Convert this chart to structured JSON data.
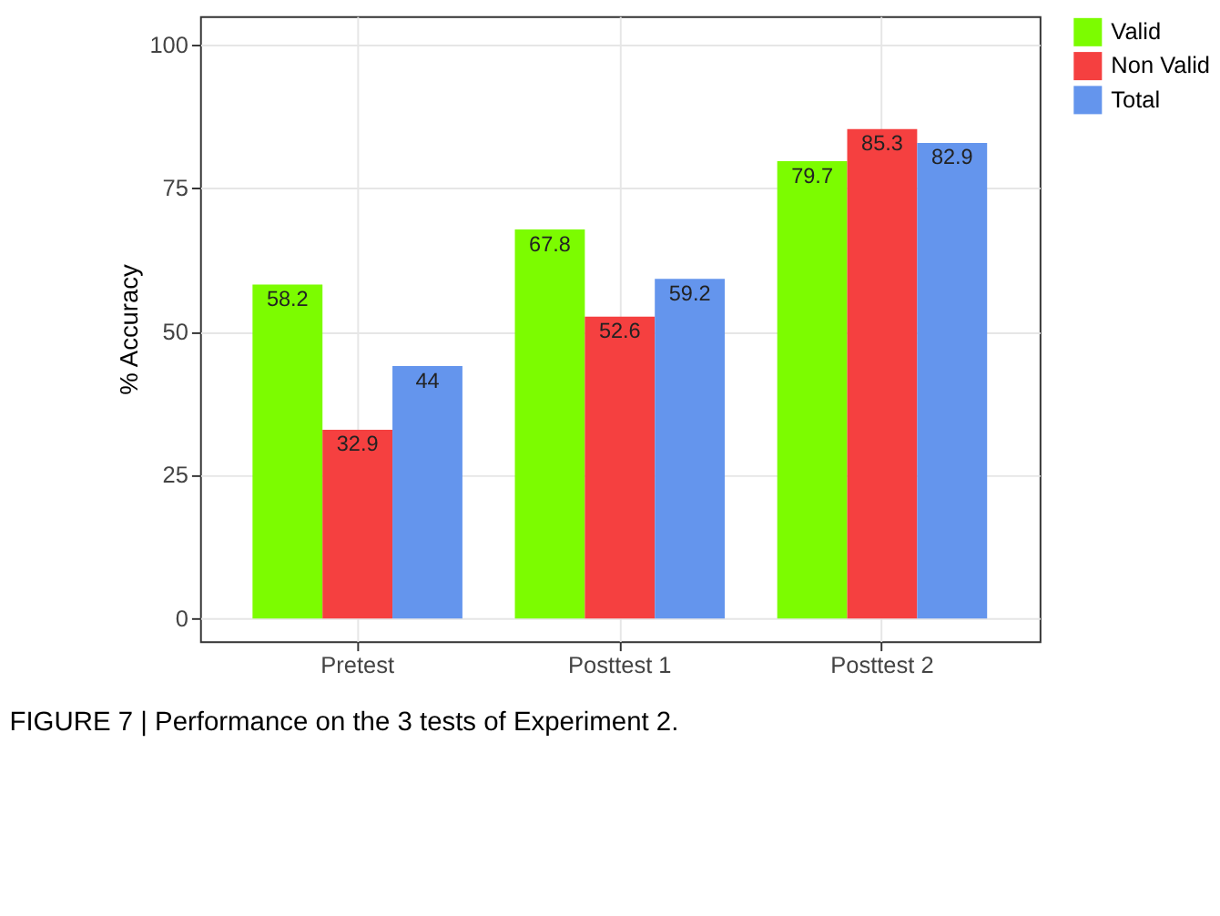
{
  "chart_data": {
    "type": "bar",
    "ylabel": "% Accuracy",
    "categories": [
      "Pretest",
      "Posttest 1",
      "Posttest 2"
    ],
    "series": [
      {
        "name": "Valid",
        "color": "#7cfc00",
        "values": [
          58.2,
          67.8,
          79.7
        ]
      },
      {
        "name": "Non Valid",
        "color": "#f54040",
        "values": [
          32.9,
          52.6,
          85.3
        ]
      },
      {
        "name": "Total",
        "color": "#6495ed",
        "values": [
          44,
          59.2,
          82.9
        ]
      }
    ],
    "ylim": [
      -4,
      105
    ],
    "yticks": [
      0,
      25,
      50,
      75,
      100
    ],
    "grid": true,
    "legend": "right",
    "data_labels": true,
    "annotations": [
      "FIGURE 7 | Performance on the 3 tests of Experiment 2."
    ]
  }
}
